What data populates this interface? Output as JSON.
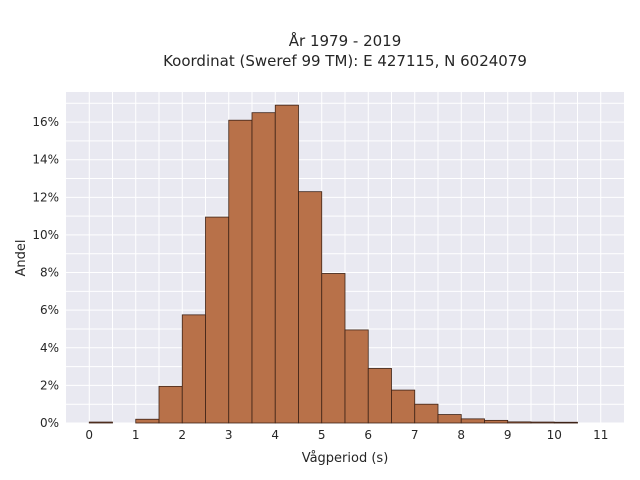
{
  "chart_data": {
    "type": "bar",
    "title_line1": "År 1979 - 2019",
    "title_line2": "Koordinat (Sweref 99 TM): E 427115, N 6024079",
    "xlabel": "Vågperiod (s)",
    "ylabel": "Andel",
    "bin_width": 0.5,
    "bin_starts": [
      0,
      0.5,
      1,
      1.5,
      2,
      2.5,
      3,
      3.5,
      4,
      4.5,
      5,
      5.5,
      6,
      6.5,
      7,
      7.5,
      8,
      8.5,
      9,
      9.5,
      10,
      10.5
    ],
    "values": [
      0.05,
      0.0,
      0.2,
      1.95,
      5.75,
      10.95,
      16.1,
      16.5,
      16.9,
      12.3,
      7.95,
      4.95,
      2.9,
      1.75,
      1.0,
      0.45,
      0.22,
      0.14,
      0.06,
      0.05,
      0.04,
      0.0
    ],
    "xlim": [
      -0.5,
      11.5
    ],
    "ylim": [
      0,
      17.6
    ],
    "x_ticks": [
      0,
      1,
      2,
      3,
      4,
      5,
      6,
      7,
      8,
      9,
      10,
      11
    ],
    "y_ticks": [
      0,
      2,
      4,
      6,
      8,
      10,
      12,
      14,
      16
    ],
    "y_tick_suffix": "%",
    "grid": true,
    "colors": {
      "bar_fill": "#b87149",
      "bar_edge": "#3d2216",
      "plot_bg": "#e9e9f1",
      "grid": "#ffffff"
    }
  }
}
